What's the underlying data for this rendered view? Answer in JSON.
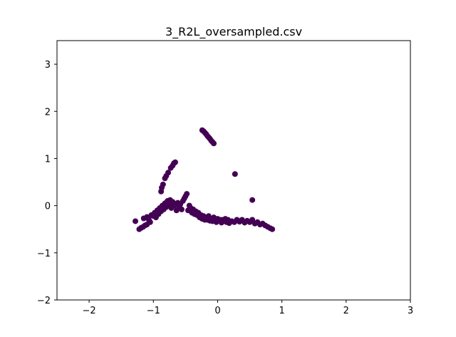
{
  "chart_data": {
    "type": "scatter",
    "title": "3_R2L_oversampled.csv",
    "xlabel": "",
    "ylabel": "",
    "xlim": [
      -2.5,
      3
    ],
    "ylim": [
      -2,
      3.5
    ],
    "xticks": [
      -2,
      -1,
      0,
      1,
      2,
      3
    ],
    "yticks": [
      -2,
      -1,
      0,
      1,
      2,
      3
    ],
    "xtick_labels": [
      "−2",
      "−1",
      "0",
      "1",
      "2",
      "3"
    ],
    "ytick_labels": [
      "−2",
      "−1",
      "0",
      "1",
      "2",
      "3"
    ],
    "grid": false,
    "marker_color": "#440154",
    "series": [
      {
        "points": [
          [
            -1.28,
            -0.33
          ],
          [
            -1.22,
            -0.5
          ],
          [
            -1.19,
            -0.47
          ],
          [
            -1.16,
            -0.45
          ],
          [
            -1.13,
            -0.42
          ],
          [
            -1.1,
            -0.4
          ],
          [
            -1.15,
            -0.27
          ],
          [
            -1.1,
            -0.24
          ],
          [
            -1.07,
            -0.3
          ],
          [
            -1.05,
            -0.35
          ],
          [
            -1.03,
            -0.2
          ],
          [
            -1.0,
            -0.22
          ],
          [
            -0.98,
            -0.15
          ],
          [
            -0.96,
            -0.25
          ],
          [
            -0.94,
            -0.1
          ],
          [
            -0.92,
            -0.18
          ],
          [
            -0.9,
            -0.05
          ],
          [
            -0.88,
            -0.12
          ],
          [
            -0.86,
            0.0
          ],
          [
            -0.84,
            -0.08
          ],
          [
            -0.82,
            0.05
          ],
          [
            -0.8,
            -0.03
          ],
          [
            -0.78,
            0.1
          ],
          [
            -0.76,
            0.02
          ],
          [
            -0.74,
            0.12
          ],
          [
            -0.72,
            -0.05
          ],
          [
            -0.7,
            0.08
          ],
          [
            -0.68,
            0.0
          ],
          [
            -0.66,
            0.04
          ],
          [
            -0.64,
            -0.1
          ],
          [
            -0.62,
            0.06
          ],
          [
            -0.6,
            -0.02
          ],
          [
            -0.58,
            0.03
          ],
          [
            -0.56,
            -0.08
          ],
          [
            -0.54,
            0.1
          ],
          [
            -0.52,
            0.15
          ],
          [
            -0.5,
            0.2
          ],
          [
            -0.48,
            0.25
          ],
          [
            -0.46,
            -0.1
          ],
          [
            -0.44,
            0.0
          ],
          [
            -0.42,
            -0.05
          ],
          [
            -0.4,
            -0.15
          ],
          [
            -0.38,
            -0.08
          ],
          [
            -0.36,
            -0.18
          ],
          [
            -0.34,
            -0.12
          ],
          [
            -0.32,
            -0.2
          ],
          [
            -0.3,
            -0.15
          ],
          [
            -0.28,
            -0.25
          ],
          [
            -0.26,
            -0.2
          ],
          [
            -0.24,
            -0.28
          ],
          [
            -0.22,
            -0.22
          ],
          [
            -0.2,
            -0.3
          ],
          [
            -0.18,
            -0.25
          ],
          [
            -0.16,
            -0.3
          ],
          [
            -0.14,
            -0.22
          ],
          [
            -0.12,
            -0.32
          ],
          [
            -0.1,
            -0.28
          ],
          [
            -0.08,
            -0.33
          ],
          [
            -0.06,
            -0.25
          ],
          [
            -0.04,
            -0.3
          ],
          [
            -0.02,
            -0.35
          ],
          [
            0.0,
            -0.28
          ],
          [
            0.02,
            -0.32
          ],
          [
            0.04,
            -0.3
          ],
          [
            0.06,
            -0.36
          ],
          [
            0.08,
            -0.3
          ],
          [
            0.1,
            -0.33
          ],
          [
            0.12,
            -0.28
          ],
          [
            0.14,
            -0.35
          ],
          [
            0.16,
            -0.3
          ],
          [
            0.18,
            -0.37
          ],
          [
            0.22,
            -0.33
          ],
          [
            0.26,
            -0.35
          ],
          [
            0.3,
            -0.3
          ],
          [
            0.34,
            -0.34
          ],
          [
            0.38,
            -0.3
          ],
          [
            0.42,
            -0.36
          ],
          [
            0.46,
            -0.32
          ],
          [
            0.5,
            -0.35
          ],
          [
            0.54,
            -0.3
          ],
          [
            0.58,
            -0.38
          ],
          [
            0.62,
            -0.35
          ],
          [
            0.66,
            -0.4
          ],
          [
            0.7,
            -0.38
          ],
          [
            0.74,
            -0.42
          ],
          [
            0.78,
            -0.45
          ],
          [
            0.82,
            -0.48
          ],
          [
            0.85,
            -0.5
          ],
          [
            -0.88,
            0.3
          ],
          [
            -0.87,
            0.38
          ],
          [
            -0.85,
            0.45
          ],
          [
            -0.82,
            0.58
          ],
          [
            -0.8,
            0.63
          ],
          [
            -0.77,
            0.7
          ],
          [
            -0.73,
            0.8
          ],
          [
            -0.7,
            0.85
          ],
          [
            -0.68,
            0.9
          ],
          [
            -0.66,
            0.92
          ],
          [
            -0.24,
            1.6
          ],
          [
            -0.22,
            1.58
          ],
          [
            -0.2,
            1.55
          ],
          [
            -0.18,
            1.52
          ],
          [
            -0.16,
            1.48
          ],
          [
            -0.14,
            1.45
          ],
          [
            -0.12,
            1.42
          ],
          [
            -0.1,
            1.38
          ],
          [
            -0.08,
            1.35
          ],
          [
            -0.06,
            1.32
          ],
          [
            0.27,
            0.67
          ],
          [
            0.54,
            0.12
          ]
        ]
      }
    ]
  }
}
